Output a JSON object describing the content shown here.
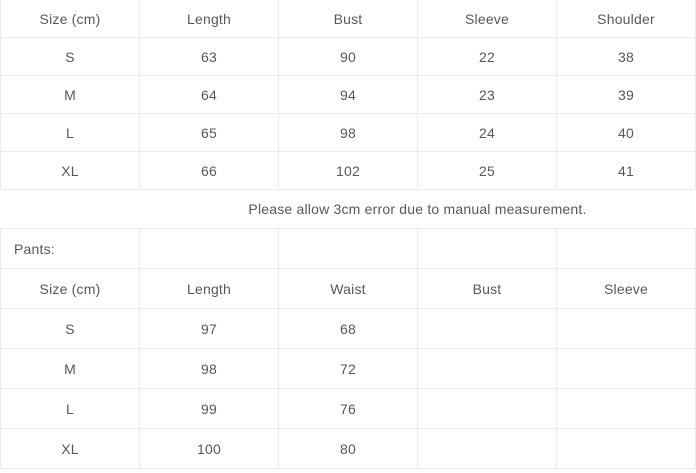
{
  "colors": {
    "background": "#ffffff",
    "border": "#ececec",
    "text": "#55585b"
  },
  "shirt_table": {
    "headers": [
      "Size (cm)",
      "Length",
      "Bust",
      "Sleeve",
      "Shoulder"
    ],
    "rows": [
      [
        "S",
        "63",
        "90",
        "22",
        "38"
      ],
      [
        "M",
        "64",
        "94",
        "23",
        "39"
      ],
      [
        "L",
        "65",
        "98",
        "24",
        "40"
      ],
      [
        "XL",
        "66",
        "102",
        "25",
        "41"
      ]
    ]
  },
  "note": "Please allow 3cm error due to manual measurement.",
  "pants_section": {
    "label": "Pants:"
  },
  "pants_table": {
    "headers": [
      "Size (cm)",
      "Length",
      "Waist",
      "Bust",
      "Sleeve"
    ],
    "rows": [
      [
        "S",
        "97",
        "68",
        "",
        ""
      ],
      [
        "M",
        "98",
        "72",
        "",
        ""
      ],
      [
        "L",
        "99",
        "76",
        "",
        ""
      ],
      [
        "XL",
        "100",
        "80",
        "",
        ""
      ]
    ]
  }
}
